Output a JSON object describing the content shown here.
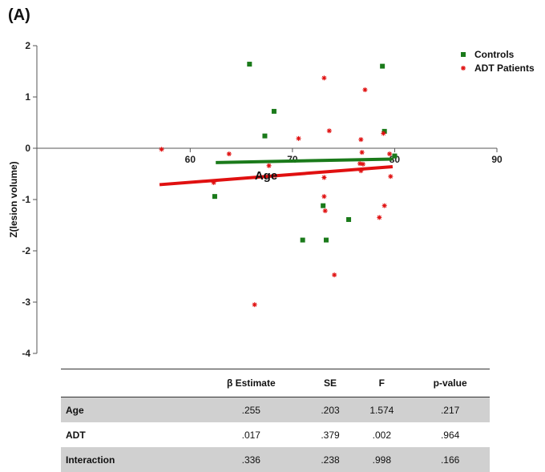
{
  "panel_label": "(A)",
  "colors": {
    "controls": "#1a7a1a",
    "adt": "#e01010",
    "axis": "#555555"
  },
  "chart_data": {
    "type": "scatter",
    "xlabel": "Age",
    "ylabel": "Z(lesion volume)",
    "xlim": [
      45,
      90
    ],
    "ylim": [
      -4,
      2
    ],
    "x_ticks": [
      "60",
      "70",
      "80",
      "90"
    ],
    "y_ticks": [
      "2",
      "1",
      "0",
      "-1",
      "-2",
      "-3",
      "-4"
    ],
    "legend_position": "top-right",
    "series": [
      {
        "name": "Controls",
        "marker": "square",
        "points": [
          [
            65.8,
            1.64
          ],
          [
            78.8,
            1.6
          ],
          [
            68.2,
            0.72
          ],
          [
            79,
            0.33
          ],
          [
            67.3,
            0.24
          ],
          [
            80,
            -0.15
          ],
          [
            62.4,
            -0.94
          ],
          [
            73,
            -1.12
          ],
          [
            75.5,
            -1.39
          ],
          [
            71,
            -1.79
          ],
          [
            73.3,
            -1.79
          ]
        ],
        "fit": [
          [
            62.5,
            -0.28
          ],
          [
            79.8,
            -0.21
          ]
        ]
      },
      {
        "name": "ADT Patients",
        "marker": "asterisk",
        "points": [
          [
            57.2,
            -0.02
          ],
          [
            63.8,
            -0.11
          ],
          [
            62.3,
            -0.67
          ],
          [
            66.3,
            -3.05
          ],
          [
            67.7,
            -0.34
          ],
          [
            70.6,
            0.19
          ],
          [
            73.1,
            1.37
          ],
          [
            73.6,
            0.34
          ],
          [
            73.1,
            -0.57
          ],
          [
            73.1,
            -0.94
          ],
          [
            73.2,
            -1.22
          ],
          [
            74.1,
            -2.47
          ],
          [
            77.1,
            1.14
          ],
          [
            76.7,
            0.17
          ],
          [
            76.8,
            -0.08
          ],
          [
            76.6,
            -0.3
          ],
          [
            76.9,
            -0.31
          ],
          [
            76.7,
            -0.44
          ],
          [
            78.9,
            0.29
          ],
          [
            79.5,
            -0.11
          ],
          [
            79.6,
            -0.55
          ],
          [
            79,
            -1.12
          ],
          [
            78.5,
            -1.35
          ]
        ],
        "fit": [
          [
            57,
            -0.71
          ],
          [
            79.8,
            -0.36
          ]
        ]
      }
    ]
  },
  "table": {
    "headers": [
      "",
      "β Estimate",
      "SE",
      "F",
      "p-value"
    ],
    "rows": [
      [
        "Age",
        ".255",
        ".203",
        "1.574",
        ".217"
      ],
      [
        "ADT",
        ".017",
        ".379",
        ".002",
        ".964"
      ],
      [
        "Interaction",
        ".336",
        ".238",
        ".998",
        ".166"
      ]
    ]
  }
}
